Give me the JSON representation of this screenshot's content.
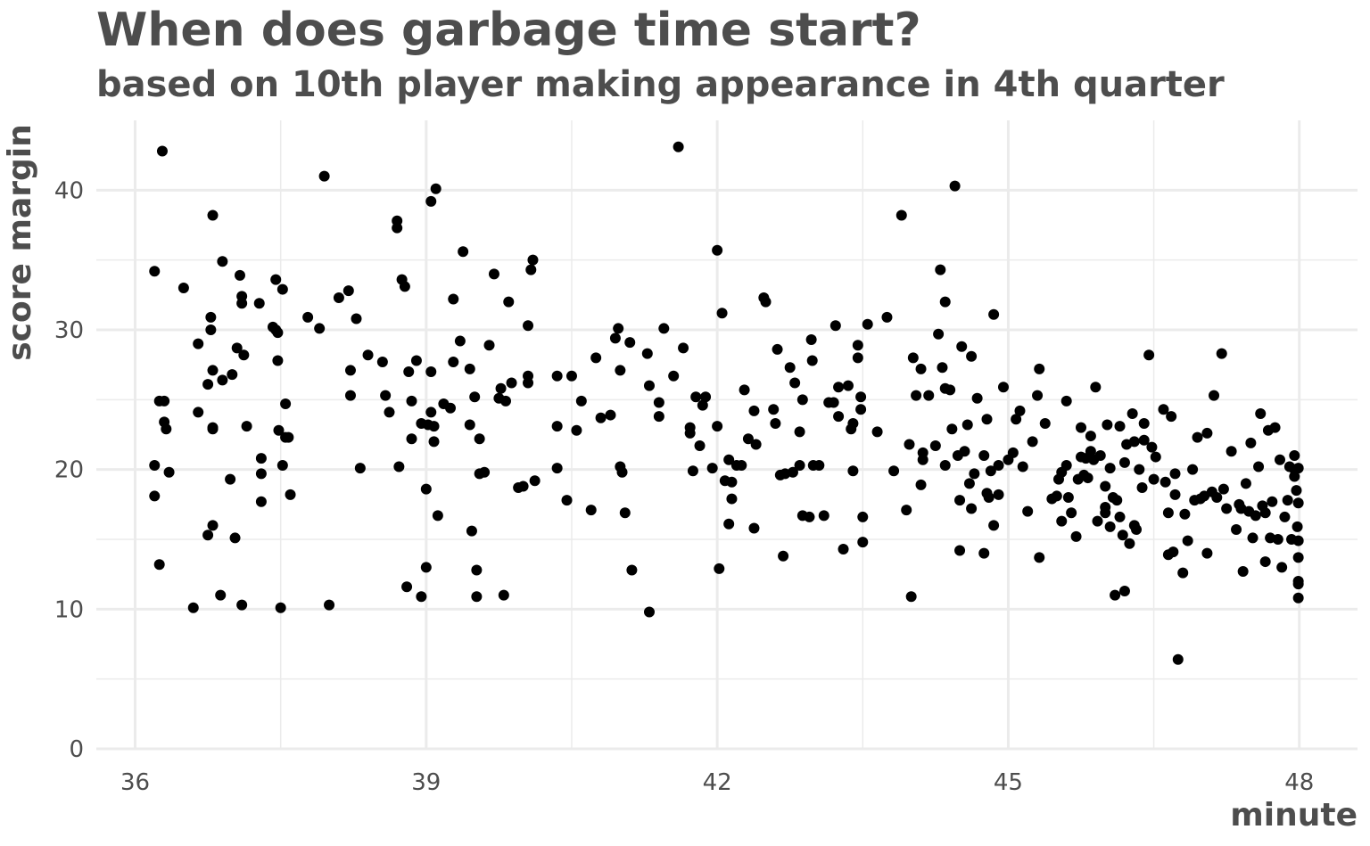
{
  "chart_data": {
    "type": "scatter",
    "title": "When does garbage time start?",
    "subtitle": "based on 10th player making appearance in 4th quarter",
    "xlabel": "minute",
    "ylabel": "score margin",
    "xlim": [
      35.6,
      48.6
    ],
    "ylim": [
      0,
      45
    ],
    "x_ticks": [
      36,
      39,
      42,
      45,
      48
    ],
    "y_ticks": [
      0,
      10,
      20,
      30,
      40
    ],
    "grid": true,
    "legend": "none",
    "point_color": "#000000",
    "points": [
      [
        36.2,
        34.2
      ],
      [
        36.2,
        20.3
      ],
      [
        36.2,
        18.1
      ],
      [
        36.25,
        13.2
      ],
      [
        36.25,
        24.9
      ],
      [
        36.3,
        24.9
      ],
      [
        36.28,
        42.8
      ],
      [
        36.3,
        23.4
      ],
      [
        36.32,
        22.9
      ],
      [
        36.35,
        19.8
      ],
      [
        36.5,
        33.0
      ],
      [
        36.6,
        10.1
      ],
      [
        36.65,
        24.1
      ],
      [
        36.65,
        29.0
      ],
      [
        36.75,
        15.3
      ],
      [
        36.75,
        26.1
      ],
      [
        36.78,
        30.9
      ],
      [
        36.78,
        30.0
      ],
      [
        36.8,
        38.2
      ],
      [
        36.8,
        27.1
      ],
      [
        36.8,
        23.0
      ],
      [
        36.8,
        22.9
      ],
      [
        36.8,
        16.0
      ],
      [
        36.88,
        11.0
      ],
      [
        36.9,
        26.4
      ],
      [
        36.9,
        34.9
      ],
      [
        36.98,
        19.3
      ],
      [
        37.0,
        26.8
      ],
      [
        37.03,
        15.1
      ],
      [
        37.05,
        28.7
      ],
      [
        37.08,
        33.9
      ],
      [
        37.1,
        32.4
      ],
      [
        37.1,
        31.9
      ],
      [
        37.1,
        10.3
      ],
      [
        37.12,
        28.2
      ],
      [
        37.15,
        23.1
      ],
      [
        37.28,
        31.9
      ],
      [
        37.3,
        20.8
      ],
      [
        37.3,
        19.7
      ],
      [
        37.3,
        17.7
      ],
      [
        37.42,
        30.2
      ],
      [
        37.45,
        30.0
      ],
      [
        37.45,
        33.6
      ],
      [
        37.47,
        29.8
      ],
      [
        37.47,
        27.8
      ],
      [
        37.48,
        22.8
      ],
      [
        37.5,
        10.1
      ],
      [
        37.52,
        20.3
      ],
      [
        37.52,
        32.9
      ],
      [
        37.55,
        22.3
      ],
      [
        37.55,
        24.7
      ],
      [
        37.58,
        22.3
      ],
      [
        37.6,
        18.2
      ],
      [
        37.78,
        30.9
      ],
      [
        37.9,
        30.1
      ],
      [
        37.95,
        41.0
      ],
      [
        38.0,
        10.3
      ],
      [
        38.1,
        32.3
      ],
      [
        38.2,
        32.8
      ],
      [
        38.22,
        27.1
      ],
      [
        38.22,
        25.3
      ],
      [
        38.28,
        30.8
      ],
      [
        38.32,
        20.1
      ],
      [
        38.4,
        28.2
      ],
      [
        38.55,
        27.7
      ],
      [
        38.58,
        25.3
      ],
      [
        38.62,
        24.1
      ],
      [
        38.7,
        37.8
      ],
      [
        38.7,
        37.3
      ],
      [
        38.72,
        20.2
      ],
      [
        38.75,
        33.6
      ],
      [
        38.78,
        33.1
      ],
      [
        38.8,
        11.6
      ],
      [
        38.82,
        27.0
      ],
      [
        38.85,
        24.9
      ],
      [
        38.85,
        22.2
      ],
      [
        38.9,
        27.8
      ],
      [
        38.95,
        23.3
      ],
      [
        38.95,
        10.9
      ],
      [
        39.0,
        13.0
      ],
      [
        39.0,
        18.6
      ],
      [
        39.02,
        23.2
      ],
      [
        39.05,
        39.2
      ],
      [
        39.05,
        24.1
      ],
      [
        39.05,
        27.0
      ],
      [
        39.08,
        22.0
      ],
      [
        39.08,
        23.1
      ],
      [
        39.1,
        40.1
      ],
      [
        39.12,
        16.7
      ],
      [
        39.18,
        24.7
      ],
      [
        39.25,
        24.4
      ],
      [
        39.28,
        32.2
      ],
      [
        39.28,
        27.7
      ],
      [
        39.35,
        29.2
      ],
      [
        39.38,
        35.6
      ],
      [
        39.45,
        27.2
      ],
      [
        39.45,
        23.2
      ],
      [
        39.47,
        15.6
      ],
      [
        39.5,
        25.2
      ],
      [
        39.52,
        12.8
      ],
      [
        39.52,
        10.9
      ],
      [
        39.55,
        22.2
      ],
      [
        39.55,
        19.7
      ],
      [
        39.6,
        19.8
      ],
      [
        39.65,
        28.9
      ],
      [
        39.7,
        34.0
      ],
      [
        39.75,
        25.1
      ],
      [
        39.77,
        25.8
      ],
      [
        39.8,
        11.0
      ],
      [
        39.82,
        24.9
      ],
      [
        39.85,
        32.0
      ],
      [
        39.88,
        26.2
      ],
      [
        39.95,
        18.7
      ],
      [
        40.0,
        18.8
      ],
      [
        40.05,
        30.3
      ],
      [
        40.05,
        26.2
      ],
      [
        40.05,
        26.7
      ],
      [
        40.08,
        34.3
      ],
      [
        40.1,
        35.0
      ],
      [
        40.12,
        19.2
      ],
      [
        40.35,
        26.7
      ],
      [
        40.35,
        23.1
      ],
      [
        40.35,
        20.1
      ],
      [
        40.45,
        17.8
      ],
      [
        40.5,
        26.7
      ],
      [
        40.55,
        22.8
      ],
      [
        40.6,
        24.9
      ],
      [
        40.7,
        17.1
      ],
      [
        40.75,
        28.0
      ],
      [
        40.8,
        23.7
      ],
      [
        40.9,
        23.9
      ],
      [
        40.95,
        29.4
      ],
      [
        40.98,
        30.1
      ],
      [
        41.0,
        27.1
      ],
      [
        41.0,
        20.2
      ],
      [
        41.02,
        19.8
      ],
      [
        41.05,
        16.9
      ],
      [
        41.1,
        29.1
      ],
      [
        41.12,
        12.8
      ],
      [
        41.28,
        28.3
      ],
      [
        41.3,
        9.8
      ],
      [
        41.3,
        26.0
      ],
      [
        41.4,
        24.8
      ],
      [
        41.4,
        23.8
      ],
      [
        41.45,
        30.1
      ],
      [
        41.55,
        26.7
      ],
      [
        41.6,
        43.1
      ],
      [
        41.65,
        28.7
      ],
      [
        41.72,
        22.6
      ],
      [
        41.72,
        23.0
      ],
      [
        41.75,
        19.9
      ],
      [
        41.78,
        25.2
      ],
      [
        41.82,
        21.7
      ],
      [
        41.85,
        24.6
      ],
      [
        41.88,
        25.2
      ],
      [
        41.95,
        20.1
      ],
      [
        42.0,
        35.7
      ],
      [
        42.0,
        23.1
      ],
      [
        42.02,
        12.9
      ],
      [
        42.05,
        31.2
      ],
      [
        42.08,
        19.2
      ],
      [
        42.12,
        20.7
      ],
      [
        42.12,
        16.1
      ],
      [
        42.15,
        19.1
      ],
      [
        42.15,
        17.9
      ],
      [
        42.2,
        20.3
      ],
      [
        42.25,
        20.3
      ],
      [
        42.28,
        25.7
      ],
      [
        42.32,
        22.2
      ],
      [
        42.38,
        15.8
      ],
      [
        42.38,
        24.2
      ],
      [
        42.4,
        21.8
      ],
      [
        42.48,
        32.3
      ],
      [
        42.5,
        32.0
      ],
      [
        42.58,
        24.3
      ],
      [
        42.6,
        23.3
      ],
      [
        42.62,
        28.6
      ],
      [
        42.65,
        19.6
      ],
      [
        42.68,
        13.8
      ],
      [
        42.7,
        19.7
      ],
      [
        42.75,
        27.3
      ],
      [
        42.78,
        19.8
      ],
      [
        42.8,
        26.2
      ],
      [
        42.85,
        22.7
      ],
      [
        42.85,
        20.3
      ],
      [
        42.88,
        16.7
      ],
      [
        42.88,
        25.0
      ],
      [
        42.95,
        16.6
      ],
      [
        42.97,
        29.3
      ],
      [
        42.98,
        27.8
      ],
      [
        42.99,
        20.3
      ],
      [
        43.05,
        20.3
      ],
      [
        43.1,
        16.7
      ],
      [
        43.15,
        24.8
      ],
      [
        43.2,
        24.8
      ],
      [
        43.22,
        30.3
      ],
      [
        43.25,
        25.9
      ],
      [
        43.25,
        23.8
      ],
      [
        43.3,
        14.3
      ],
      [
        43.35,
        26.0
      ],
      [
        43.38,
        22.9
      ],
      [
        43.4,
        23.3
      ],
      [
        43.4,
        19.9
      ],
      [
        43.45,
        28.0
      ],
      [
        43.45,
        28.9
      ],
      [
        43.48,
        25.2
      ],
      [
        43.48,
        24.3
      ],
      [
        43.5,
        16.6
      ],
      [
        43.5,
        14.8
      ],
      [
        43.55,
        30.4
      ],
      [
        43.65,
        22.7
      ],
      [
        43.75,
        30.9
      ],
      [
        43.82,
        19.9
      ],
      [
        43.9,
        38.2
      ],
      [
        43.95,
        17.1
      ],
      [
        43.98,
        21.8
      ],
      [
        44.0,
        10.9
      ],
      [
        44.02,
        28.0
      ],
      [
        44.05,
        25.3
      ],
      [
        44.1,
        18.9
      ],
      [
        44.1,
        27.2
      ],
      [
        44.12,
        20.7
      ],
      [
        44.12,
        21.2
      ],
      [
        44.18,
        25.3
      ],
      [
        44.25,
        21.7
      ],
      [
        44.28,
        29.7
      ],
      [
        44.3,
        34.3
      ],
      [
        44.32,
        27.3
      ],
      [
        44.35,
        32.0
      ],
      [
        44.35,
        25.8
      ],
      [
        44.35,
        20.3
      ],
      [
        44.4,
        25.7
      ],
      [
        44.42,
        22.9
      ],
      [
        44.45,
        40.3
      ],
      [
        44.48,
        21.0
      ],
      [
        44.5,
        14.2
      ],
      [
        44.5,
        17.8
      ],
      [
        44.52,
        28.8
      ],
      [
        44.55,
        21.3
      ],
      [
        44.58,
        23.2
      ],
      [
        44.6,
        19.0
      ],
      [
        44.62,
        28.1
      ],
      [
        44.62,
        17.2
      ],
      [
        44.65,
        19.7
      ],
      [
        44.68,
        25.1
      ],
      [
        44.75,
        21.0
      ],
      [
        44.75,
        14.0
      ],
      [
        44.78,
        23.6
      ],
      [
        44.78,
        18.3
      ],
      [
        44.8,
        18.0
      ],
      [
        44.82,
        19.9
      ],
      [
        44.85,
        31.1
      ],
      [
        44.85,
        16.0
      ],
      [
        44.9,
        20.3
      ],
      [
        44.9,
        18.2
      ],
      [
        44.95,
        25.9
      ],
      [
        45.0,
        20.7
      ],
      [
        45.05,
        21.2
      ],
      [
        45.08,
        23.6
      ],
      [
        45.12,
        24.2
      ],
      [
        45.15,
        20.2
      ],
      [
        45.2,
        17.0
      ],
      [
        45.25,
        22.0
      ],
      [
        45.3,
        25.3
      ],
      [
        45.32,
        27.2
      ],
      [
        45.32,
        13.7
      ],
      [
        45.38,
        23.3
      ],
      [
        45.45,
        17.9
      ],
      [
        45.5,
        18.1
      ],
      [
        45.52,
        19.3
      ],
      [
        45.55,
        19.8
      ],
      [
        45.55,
        16.3
      ],
      [
        45.6,
        24.9
      ],
      [
        45.6,
        20.3
      ],
      [
        45.62,
        18.0
      ],
      [
        45.65,
        16.9
      ],
      [
        45.7,
        15.2
      ],
      [
        45.72,
        19.3
      ],
      [
        45.75,
        20.9
      ],
      [
        45.75,
        23.0
      ],
      [
        45.78,
        19.6
      ],
      [
        45.8,
        20.8
      ],
      [
        45.82,
        19.4
      ],
      [
        45.85,
        22.4
      ],
      [
        45.85,
        21.3
      ],
      [
        45.88,
        20.7
      ],
      [
        45.9,
        25.9
      ],
      [
        45.92,
        16.3
      ],
      [
        45.95,
        21.0
      ],
      [
        46.0,
        18.8
      ],
      [
        46.0,
        17.3
      ],
      [
        46.0,
        16.9
      ],
      [
        46.02,
        23.2
      ],
      [
        46.05,
        15.9
      ],
      [
        46.05,
        20.1
      ],
      [
        46.08,
        18.0
      ],
      [
        46.1,
        11.0
      ],
      [
        46.12,
        17.8
      ],
      [
        46.15,
        23.1
      ],
      [
        46.15,
        16.6
      ],
      [
        46.18,
        15.3
      ],
      [
        46.2,
        20.5
      ],
      [
        46.2,
        11.3
      ],
      [
        46.22,
        21.8
      ],
      [
        46.25,
        14.7
      ],
      [
        46.28,
        24.0
      ],
      [
        46.3,
        16.0
      ],
      [
        46.3,
        22.0
      ],
      [
        46.32,
        15.7
      ],
      [
        46.35,
        20.0
      ],
      [
        46.38,
        18.7
      ],
      [
        46.4,
        23.3
      ],
      [
        46.4,
        22.1
      ],
      [
        46.45,
        28.2
      ],
      [
        46.48,
        21.6
      ],
      [
        46.5,
        19.3
      ],
      [
        46.52,
        20.9
      ],
      [
        46.6,
        24.3
      ],
      [
        46.62,
        19.1
      ],
      [
        46.65,
        16.9
      ],
      [
        46.65,
        13.9
      ],
      [
        46.68,
        23.8
      ],
      [
        46.7,
        14.1
      ],
      [
        46.72,
        19.7
      ],
      [
        46.72,
        18.2
      ],
      [
        46.75,
        6.4
      ],
      [
        46.8,
        12.6
      ],
      [
        46.82,
        16.8
      ],
      [
        46.85,
        14.9
      ],
      [
        46.9,
        20.0
      ],
      [
        46.92,
        17.8
      ],
      [
        46.95,
        22.3
      ],
      [
        46.98,
        17.9
      ],
      [
        47.02,
        18.1
      ],
      [
        47.05,
        22.6
      ],
      [
        47.05,
        14.0
      ],
      [
        47.1,
        18.4
      ],
      [
        47.12,
        25.3
      ],
      [
        47.15,
        18.0
      ],
      [
        47.2,
        28.3
      ],
      [
        47.22,
        18.6
      ],
      [
        47.25,
        17.2
      ],
      [
        47.3,
        21.3
      ],
      [
        47.35,
        15.7
      ],
      [
        47.38,
        17.5
      ],
      [
        47.4,
        17.2
      ],
      [
        47.42,
        12.7
      ],
      [
        47.45,
        19.0
      ],
      [
        47.48,
        17.0
      ],
      [
        47.5,
        21.9
      ],
      [
        47.52,
        15.1
      ],
      [
        47.55,
        16.7
      ],
      [
        47.58,
        20.2
      ],
      [
        47.6,
        24.0
      ],
      [
        47.62,
        17.4
      ],
      [
        47.65,
        16.9
      ],
      [
        47.65,
        13.4
      ],
      [
        47.68,
        22.8
      ],
      [
        47.7,
        15.1
      ],
      [
        47.72,
        17.7
      ],
      [
        47.75,
        23.0
      ],
      [
        47.78,
        15.0
      ],
      [
        47.8,
        20.7
      ],
      [
        47.82,
        13.0
      ],
      [
        47.85,
        16.6
      ],
      [
        47.88,
        17.8
      ],
      [
        47.9,
        20.2
      ],
      [
        47.92,
        15.0
      ],
      [
        47.95,
        21.0
      ],
      [
        47.95,
        20.0
      ],
      [
        47.98,
        15.9
      ],
      [
        47.99,
        13.7
      ],
      [
        47.99,
        14.9
      ],
      [
        47.99,
        20.1
      ],
      [
        47.99,
        12.0
      ],
      [
        47.99,
        11.8
      ],
      [
        47.99,
        10.8
      ],
      [
        47.99,
        17.6
      ],
      [
        47.95,
        19.5
      ],
      [
        47.97,
        18.5
      ]
    ]
  }
}
